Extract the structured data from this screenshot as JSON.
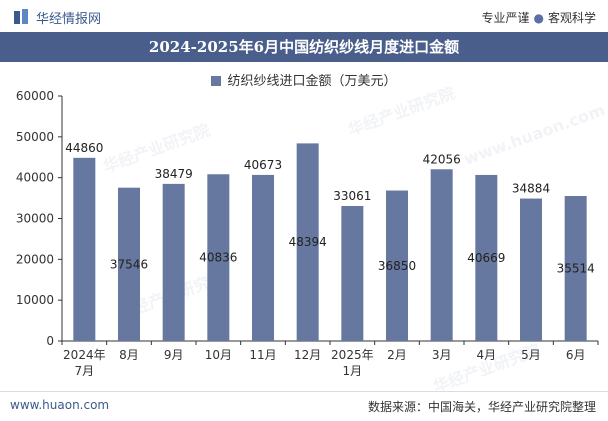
{
  "header": {
    "brand": "华经情报网",
    "slogan_left": "专业严谨",
    "slogan_right": "客观科学"
  },
  "title": "2024-2025年6月中国纺织纱线月度进口金额",
  "legend": {
    "label": "纺织纱线进口金额（万美元）"
  },
  "watermarks": [
    "华经产业研究院",
    "www.huaon.com"
  ],
  "footer": {
    "left": "www.huaon.com",
    "right": "数据来源：中国海关，华经产业研究院整理"
  },
  "colors": {
    "bar": "#66789f",
    "title_bg": "#4a5e8c",
    "brand": "#3a5a8c"
  },
  "chart_data": {
    "type": "bar",
    "categories": [
      "2024年7月",
      "8月",
      "9月",
      "10月",
      "11月",
      "12月",
      "2025年1月",
      "2月",
      "3月",
      "4月",
      "5月",
      "6月"
    ],
    "series": [
      {
        "name": "纺织纱线进口金额（万美元）",
        "values": [
          44860,
          37546,
          38479,
          40836,
          40673,
          48394,
          33061,
          36850,
          42056,
          40669,
          34884,
          35514
        ]
      }
    ],
    "ylim": [
      0,
      60000
    ],
    "yticks": [
      0,
      10000,
      20000,
      30000,
      40000,
      50000,
      60000
    ],
    "label_positions": [
      "top",
      "inside",
      "top",
      "inside",
      "top",
      "inside",
      "top",
      "inside",
      "top",
      "inside",
      "top",
      "inside"
    ],
    "grid": false,
    "legend_position": "top"
  }
}
